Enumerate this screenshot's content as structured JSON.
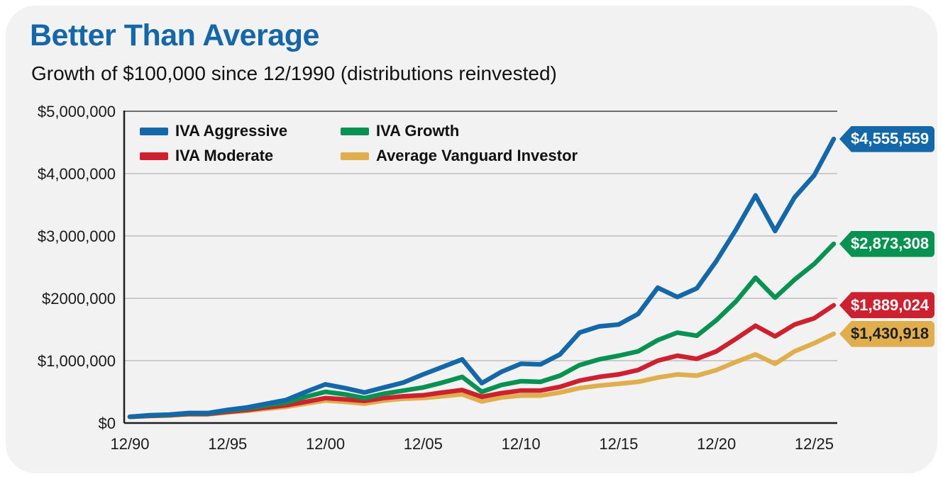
{
  "colors": {
    "card_background": "#f2f2f2",
    "title": "#1667a8",
    "grid": "#bdbdbd",
    "axis": "#1f1f1f",
    "top_border": "#6d6d6d"
  },
  "chart_data": {
    "type": "line",
    "title": "Better Than Average",
    "subtitle": "Growth of $100,000 since 12/1990 (distributions reinvested)",
    "grid": true,
    "legend_position": "top-left",
    "ylim": [
      0,
      5000000
    ],
    "x_domain": [
      1990,
      2026
    ],
    "years": [
      1990,
      1991,
      1992,
      1993,
      1994,
      1995,
      1996,
      1997,
      1998,
      1999,
      2000,
      2001,
      2002,
      2003,
      2004,
      2005,
      2006,
      2007,
      2008,
      2009,
      2010,
      2011,
      2012,
      2013,
      2014,
      2015,
      2016,
      2017,
      2018,
      2019,
      2020,
      2021,
      2022,
      2023,
      2024,
      2025,
      2026
    ],
    "x_ticks": [
      {
        "year": 1990,
        "label": "12/90"
      },
      {
        "year": 1995,
        "label": "12/95"
      },
      {
        "year": 2000,
        "label": "12/00"
      },
      {
        "year": 2005,
        "label": "12/05"
      },
      {
        "year": 2010,
        "label": "12/10"
      },
      {
        "year": 2015,
        "label": "12/15"
      },
      {
        "year": 2020,
        "label": "12/20"
      },
      {
        "year": 2025,
        "label": "12/25"
      }
    ],
    "y_ticks": [
      {
        "value": 0,
        "label": "$0"
      },
      {
        "value": 1000000,
        "label": "$1,000,000"
      },
      {
        "value": 2000000,
        "label": "$2000,000"
      },
      {
        "value": 3000000,
        "label": "$3,000,000"
      },
      {
        "value": 4000000,
        "label": "$4,000,000"
      },
      {
        "value": 5000000,
        "label": "$5,000,000"
      }
    ],
    "series": [
      {
        "key": "iva-aggressive",
        "name": "IVA Aggressive",
        "color": "#1467a8",
        "end_label": "$4,555,559",
        "end_label_color": "#ffffff",
        "values": [
          100000,
          125000,
          135000,
          160000,
          160000,
          210000,
          250000,
          310000,
          370000,
          500000,
          620000,
          560000,
          490000,
          570000,
          650000,
          780000,
          900000,
          1020000,
          640000,
          820000,
          950000,
          940000,
          1100000,
          1450000,
          1550000,
          1580000,
          1750000,
          2170000,
          2020000,
          2160000,
          2600000,
          3100000,
          3650000,
          3080000,
          3620000,
          3970000,
          4555559
        ]
      },
      {
        "key": "iva-growth",
        "name": "IVA Growth",
        "color": "#089251",
        "end_label": "$2,873,308",
        "end_label_color": "#ffffff",
        "values": [
          100000,
          120000,
          130000,
          155000,
          155000,
          200000,
          235000,
          285000,
          330000,
          420000,
          500000,
          460000,
          400000,
          470000,
          520000,
          570000,
          650000,
          740000,
          500000,
          610000,
          670000,
          660000,
          760000,
          930000,
          1020000,
          1080000,
          1150000,
          1330000,
          1450000,
          1400000,
          1650000,
          1950000,
          2330000,
          2010000,
          2300000,
          2550000,
          2873308
        ]
      },
      {
        "key": "iva-moderate",
        "name": "IVA Moderate",
        "color": "#ce2130",
        "end_label": "$1,889,024",
        "end_label_color": "#ffffff",
        "values": [
          100000,
          115000,
          125000,
          145000,
          145000,
          180000,
          210000,
          250000,
          285000,
          340000,
          400000,
          380000,
          355000,
          400000,
          430000,
          445000,
          490000,
          530000,
          420000,
          480000,
          520000,
          520000,
          580000,
          680000,
          740000,
          780000,
          850000,
          1000000,
          1080000,
          1030000,
          1150000,
          1350000,
          1560000,
          1390000,
          1580000,
          1680000,
          1889024
        ]
      },
      {
        "key": "average-vanguard-investor",
        "name": "Average Vanguard Investor",
        "color": "#e1ae4d",
        "end_label": "$1,430,918",
        "end_label_color": "#1f1f1f",
        "values": [
          100000,
          112000,
          120000,
          140000,
          140000,
          170000,
          195000,
          230000,
          260000,
          310000,
          360000,
          340000,
          310000,
          360000,
          390000,
          400000,
          430000,
          460000,
          345000,
          410000,
          440000,
          440000,
          490000,
          560000,
          600000,
          630000,
          660000,
          730000,
          780000,
          760000,
          850000,
          980000,
          1100000,
          950000,
          1150000,
          1280000,
          1430918
        ]
      }
    ]
  }
}
